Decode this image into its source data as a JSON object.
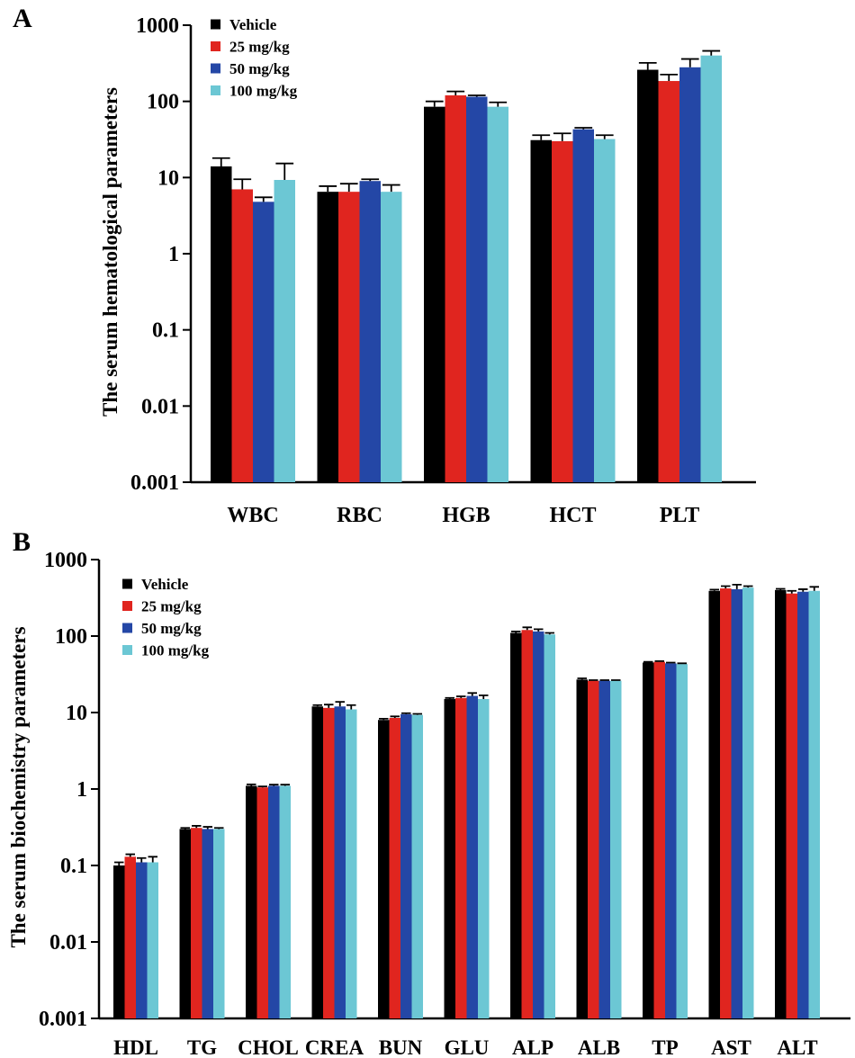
{
  "chart_data": [
    {
      "panel_label": "A",
      "type": "bar",
      "scale": "log",
      "title": "",
      "xlabel": "",
      "ylabel": "The  serum hematological parameters",
      "ylim": [
        0.001,
        1000
      ],
      "yticks": [
        "0.001",
        "0.01",
        "0.1",
        "1",
        "10",
        "100",
        "1000"
      ],
      "categories": [
        "WBC",
        "RBC",
        "HGB",
        "HCT",
        "PLT"
      ],
      "legend_position": "top-left",
      "series": [
        {
          "name": "Vehicle",
          "color": "#000000",
          "values": [
            14,
            6.5,
            85,
            31,
            260
          ],
          "errors": [
            4,
            1.2,
            15,
            5,
            60
          ]
        },
        {
          "name": "25  mg/kg",
          "color": "#e0251f",
          "values": [
            7,
            6.5,
            120,
            30,
            185
          ],
          "errors": [
            2.5,
            1.8,
            15,
            8,
            40
          ]
        },
        {
          "name": "50  mg/kg",
          "color": "#2447a6",
          "values": [
            4.8,
            9,
            115,
            43,
            280
          ],
          "errors": [
            0.7,
            0.5,
            5,
            2,
            80
          ]
        },
        {
          "name": "100 mg/kg",
          "color": "#6cc7d4",
          "values": [
            9.3,
            6.5,
            85,
            32,
            400
          ],
          "errors": [
            6,
            1.5,
            12,
            4,
            60
          ]
        }
      ]
    },
    {
      "panel_label": "B",
      "type": "bar",
      "scale": "log",
      "title": "",
      "xlabel": "",
      "ylabel": "The  serum biochemistry parameters",
      "ylim": [
        0.001,
        1000
      ],
      "yticks": [
        "0.001",
        "0.01",
        "0.1",
        "1",
        "10",
        "100",
        "1000"
      ],
      "categories": [
        "HDL",
        "TG",
        "CHOL",
        "CREA",
        "BUN",
        "GLU",
        "ALP",
        "ALB",
        "TP",
        "AST",
        "ALT"
      ],
      "legend_position": "top-left",
      "series": [
        {
          "name": "Vehicle",
          "color": "#000000",
          "values": [
            0.1,
            0.3,
            1.1,
            12,
            8,
            15,
            110,
            27,
            45,
            390,
            400
          ],
          "errors": [
            0.01,
            0.01,
            0.05,
            0.5,
            0.3,
            0.5,
            5,
            1,
            1,
            15,
            15
          ]
        },
        {
          "name": "25  mg/kg",
          "color": "#e0251f",
          "values": [
            0.13,
            0.31,
            1.05,
            11.5,
            8.5,
            15.5,
            120,
            26,
            46,
            420,
            360
          ],
          "errors": [
            0.01,
            0.02,
            0.03,
            1.2,
            0.4,
            0.8,
            10,
            0.5,
            1,
            30,
            30
          ]
        },
        {
          "name": "50  mg/kg",
          "color": "#2447a6",
          "values": [
            0.11,
            0.3,
            1.1,
            12,
            9.5,
            16.5,
            115,
            26,
            44,
            410,
            380
          ],
          "errors": [
            0.015,
            0.02,
            0.04,
            1.8,
            0.3,
            1.5,
            8,
            0.5,
            1,
            60,
            30
          ]
        },
        {
          "name": "100 mg/kg",
          "color": "#6cc7d4",
          "values": [
            0.11,
            0.3,
            1.1,
            11,
            9.3,
            15,
            105,
            26,
            43,
            430,
            390
          ],
          "errors": [
            0.02,
            0.01,
            0.04,
            1.5,
            0.3,
            1.8,
            5,
            0.5,
            1,
            20,
            50
          ]
        }
      ]
    }
  ]
}
